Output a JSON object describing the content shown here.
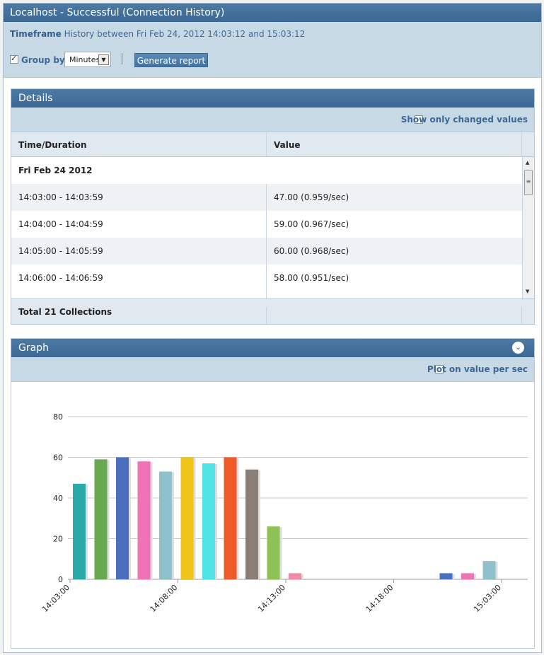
{
  "window": {
    "title": "Localhost - Successful (Connection History)"
  },
  "timeframe": {
    "label": "Timeframe",
    "text": "History between Fri Feb 24, 2012 14:03:12 and 15:03:12"
  },
  "controls": {
    "group_by_label": "Group by",
    "group_by_checked": true,
    "group_by_value": "Minutes",
    "generate_label": "Generate report"
  },
  "details": {
    "title": "Details",
    "show_changed_label": "Show only changed values",
    "columns": [
      "Time/Duration",
      "Value"
    ],
    "date_row": "Fri Feb 24 2012",
    "rows": [
      {
        "time": "14:03:00 - 14:03:59",
        "value": "47.00 (0.959/sec)"
      },
      {
        "time": "14:04:00 - 14:04:59",
        "value": "59.00 (0.967/sec)"
      },
      {
        "time": "14:05:00 - 14:05:59",
        "value": "60.00 (0.968/sec)"
      },
      {
        "time": "14:06:00 - 14:06:59",
        "value": "58.00 (0.951/sec)"
      }
    ],
    "total": "Total 21 Collections"
  },
  "graph": {
    "title": "Graph",
    "plot_per_sec_label": "Plot on value per sec"
  },
  "chart_data": {
    "type": "bar",
    "title": "",
    "xlabel": "",
    "ylabel": "",
    "ylim": [
      0,
      80
    ],
    "yticks": [
      0,
      20,
      40,
      60,
      80
    ],
    "grid": true,
    "xticks": [
      "14:03:00",
      "14:08:00",
      "14:13:00",
      "14:18:00",
      "15:03:00"
    ],
    "bars": [
      {
        "slot": 0,
        "value": 47,
        "color": "#2aa9a8"
      },
      {
        "slot": 1,
        "value": 59,
        "color": "#6aa84f"
      },
      {
        "slot": 2,
        "value": 60,
        "color": "#4a6fbf"
      },
      {
        "slot": 3,
        "value": 58,
        "color": "#f073b8"
      },
      {
        "slot": 4,
        "value": 53,
        "color": "#8fc1cc"
      },
      {
        "slot": 5,
        "value": 60,
        "color": "#f0c419"
      },
      {
        "slot": 6,
        "value": 57,
        "color": "#4fe3e6"
      },
      {
        "slot": 7,
        "value": 60,
        "color": "#f05a28"
      },
      {
        "slot": 8,
        "value": 54,
        "color": "#8a7f77"
      },
      {
        "slot": 9,
        "value": 26,
        "color": "#8fc255"
      },
      {
        "slot": 10,
        "value": 3,
        "color": "#f08aa5"
      },
      {
        "slot": 17,
        "value": 3,
        "color": "#4a6fbf"
      },
      {
        "slot": 18,
        "value": 3,
        "color": "#f073b8"
      },
      {
        "slot": 19,
        "value": 9,
        "color": "#8fc1cc"
      }
    ]
  }
}
